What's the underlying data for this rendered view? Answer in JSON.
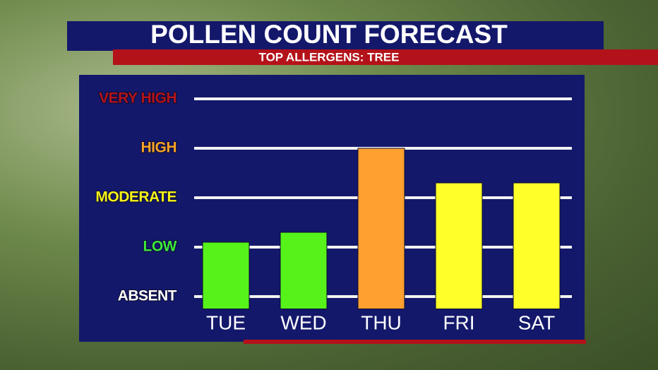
{
  "chart_data": {
    "type": "bar",
    "title": "POLLEN COUNT FORECAST",
    "subtitle": "TOP ALLERGENS: TREE",
    "categories": [
      "TUE",
      "WED",
      "THU",
      "FRI",
      "SAT"
    ],
    "values": [
      1.1,
      1.3,
      3.0,
      2.3,
      2.3
    ],
    "colors": [
      "#56f21a",
      "#56f21a",
      "#ffa030",
      "#ffff2a",
      "#ffff2a"
    ],
    "ylim": [
      -0.25,
      4.25
    ],
    "yticks": [
      {
        "value": 0,
        "label": "ABSENT"
      },
      {
        "value": 1,
        "label": "LOW"
      },
      {
        "value": 2,
        "label": "MODERATE"
      },
      {
        "value": 3,
        "label": "HIGH"
      },
      {
        "value": 4,
        "label": "VERY HIGH"
      }
    ],
    "ytick_colors": [
      "#ffffff",
      "#3ee83e",
      "#f6f21a",
      "#f7a32a",
      "#b3141c"
    ],
    "grid": true
  }
}
